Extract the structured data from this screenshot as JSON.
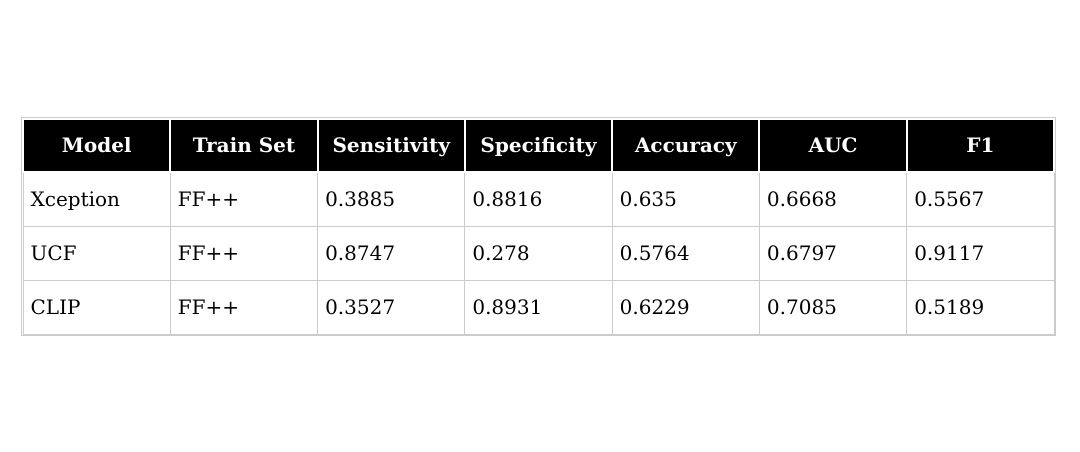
{
  "chart_data": {
    "type": "table",
    "columns": [
      "Model",
      "Train Set",
      "Sensitivity",
      "Specificity",
      "Accuracy",
      "AUC",
      "F1"
    ],
    "rows": [
      [
        "Xception",
        "FF++",
        "0.3885",
        "0.8816",
        "0.635",
        "0.6668",
        "0.5567"
      ],
      [
        "UCF",
        "FF++",
        "0.8747",
        "0.278",
        "0.5764",
        "0.6797",
        "0.9117"
      ],
      [
        "CLIP",
        "FF++",
        "0.3527",
        "0.8931",
        "0.6229",
        "0.7085",
        "0.5189"
      ]
    ]
  },
  "colors": {
    "header_bg": "#000000",
    "header_text": "#ffffff",
    "body_text": "#000000",
    "border": "#cccccc",
    "page_bg": "#ffffff"
  }
}
